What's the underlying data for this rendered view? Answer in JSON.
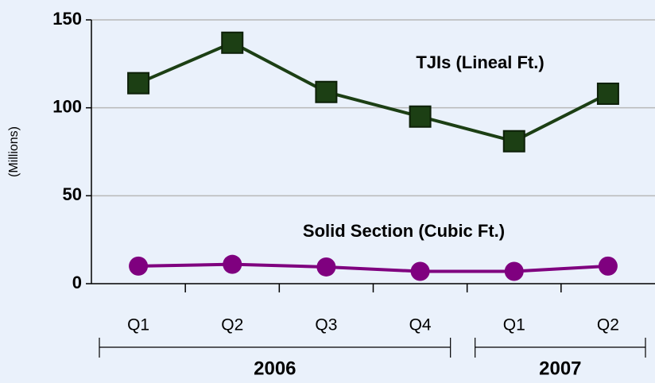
{
  "chart_data": {
    "type": "line",
    "y_label": "(Millions)",
    "groups": [
      {
        "name": "2006",
        "categories": [
          "Q1",
          "Q2",
          "Q3",
          "Q4"
        ]
      },
      {
        "name": "2007",
        "categories": [
          "Q1",
          "Q2"
        ]
      }
    ],
    "series": [
      {
        "name": "TJIs (Lineal Ft.)",
        "color": "#1c3f14",
        "marker": "square",
        "values": [
          114,
          137,
          109,
          95,
          81,
          108
        ]
      },
      {
        "name": "Solid Section (Cubic Ft.)",
        "color": "#7f007f",
        "marker": "circle",
        "values": [
          10,
          11,
          9.5,
          7,
          7,
          10
        ]
      }
    ],
    "ylim": [
      0,
      150
    ],
    "yticks": [
      0,
      50,
      100,
      150
    ],
    "grid": true
  }
}
